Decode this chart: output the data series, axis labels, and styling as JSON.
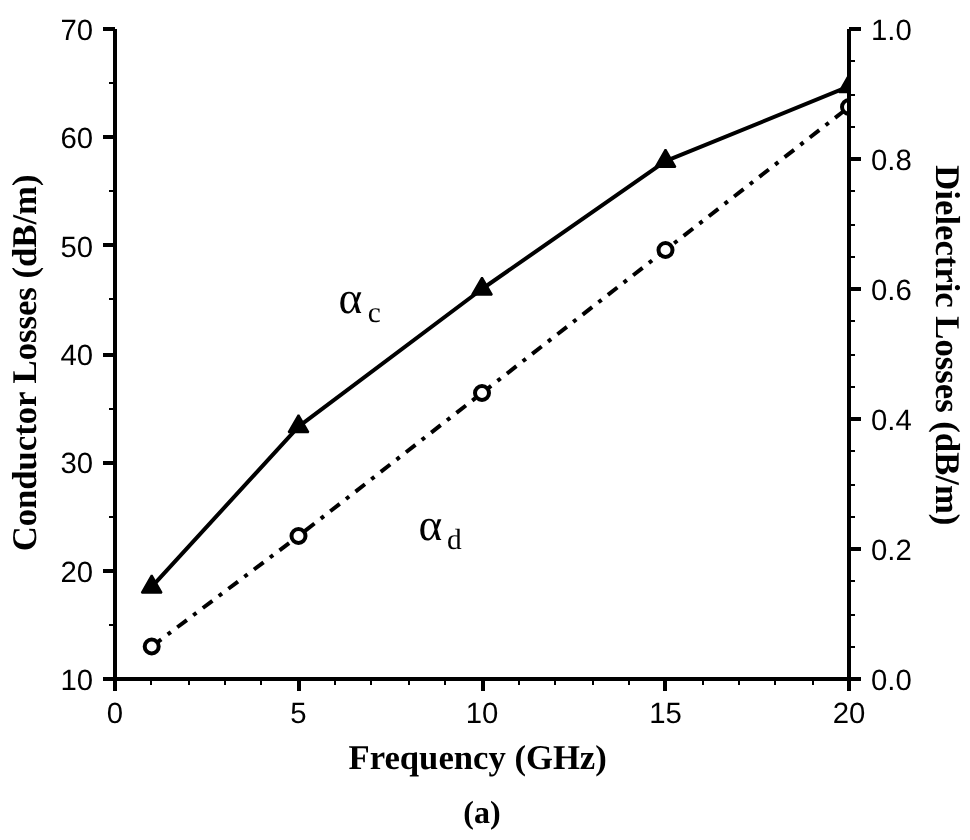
{
  "chart_data": {
    "type": "line",
    "xlabel": "Frequency  (GHz)",
    "ylabel": "Conductor  Losses  (dB/m)",
    "y2label": "Dielectric  Losses  (dB/m)",
    "x": [
      1,
      5,
      10,
      15,
      20
    ],
    "series": [
      {
        "name": "α$_{c}$",
        "color": "#000000",
        "marker": "triangle",
        "line_style": "solid",
        "values": [
          18.5,
          33.3,
          46.0,
          57.8,
          64.7
        ]
      },
      {
        "name": "α$_{d}$",
        "color": "#000000",
        "marker": "circle",
        "line_style": "dashed",
        "axis": "y2",
        "values": [
          0.05,
          0.22,
          0.44,
          0.66,
          0.88
        ]
      }
    ],
    "xlim": [
      0,
      20
    ],
    "xticks": [
      0,
      5,
      10,
      15,
      20
    ],
    "ylim": [
      10,
      70
    ],
    "yticks": [
      10,
      20,
      30,
      40,
      50,
      60,
      70
    ],
    "y2lim": [
      0,
      1
    ],
    "y2ticks": [
      {
        "value": 0,
        "label": "0.0"
      },
      0.2,
      0.4,
      0.6,
      0.8,
      {
        "value": 1,
        "label": "1.0"
      }
    ],
    "annotations": [
      "(a)"
    ]
  }
}
